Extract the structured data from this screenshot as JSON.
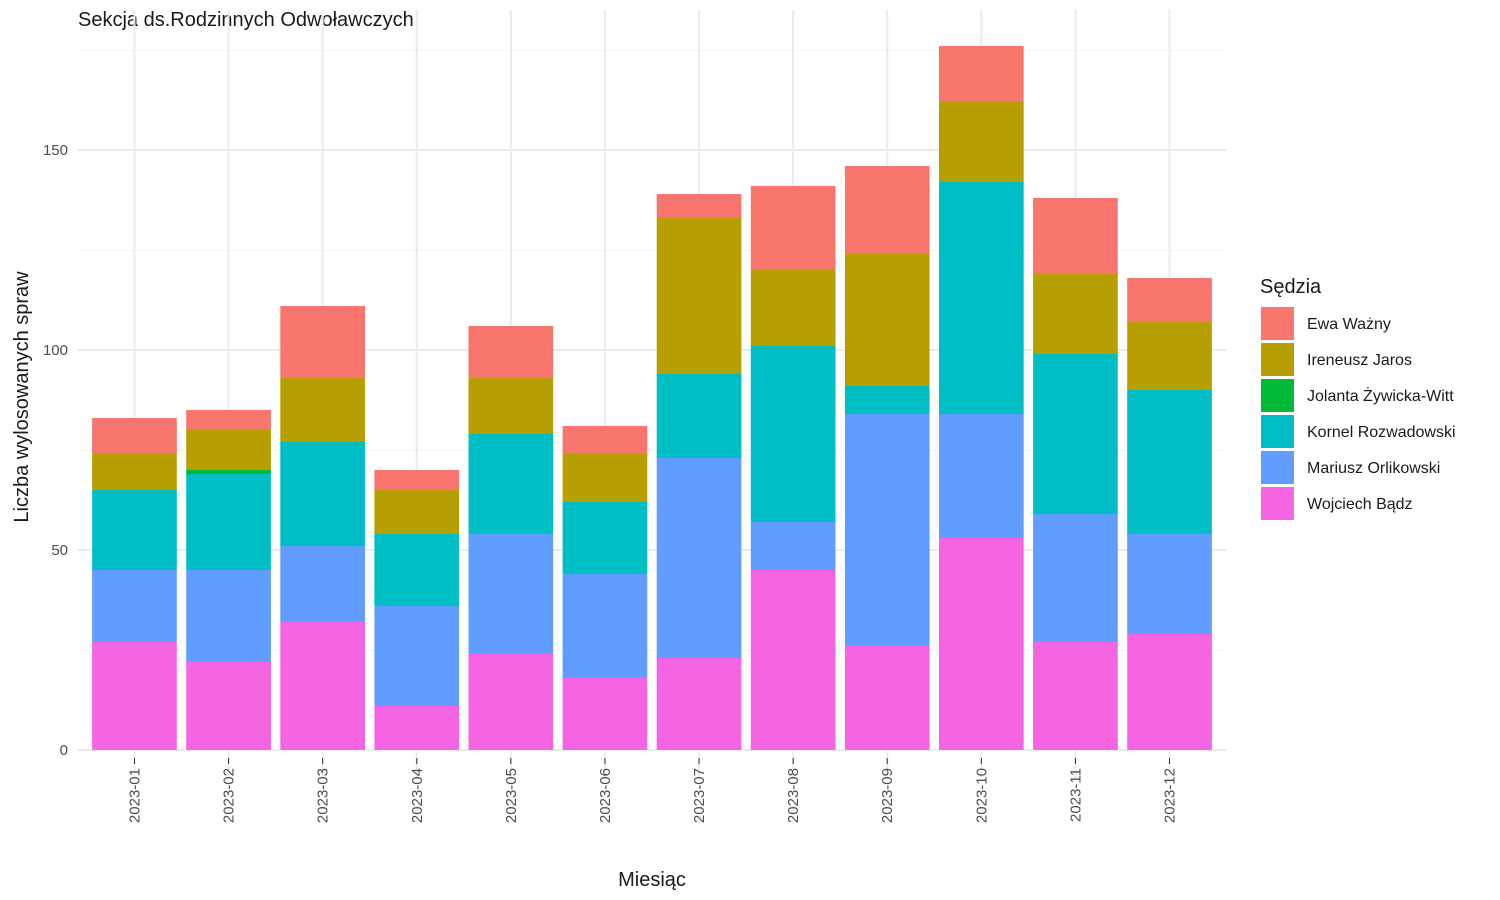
{
  "chart_data": {
    "type": "bar",
    "stacked": true,
    "title": "Sekcja ds.Rodzinnych Odwoławczych",
    "xlabel": "Miesiąc",
    "ylabel": "Liczba wylosowanych spraw",
    "ylim": [
      0,
      181
    ],
    "yticks": [
      0,
      50,
      100,
      150
    ],
    "grid": true,
    "legend": {
      "title": "Sędzia",
      "position": "right"
    },
    "categories": [
      "2023-01",
      "2023-02",
      "2023-03",
      "2023-04",
      "2023-05",
      "2023-06",
      "2023-07",
      "2023-08",
      "2023-09",
      "2023-10",
      "2023-11",
      "2023-12"
    ],
    "series": [
      {
        "name": "Wojciech Bądz",
        "color": "#F564E3",
        "values": [
          27,
          22,
          32,
          11,
          24,
          18,
          23,
          45,
          26,
          53,
          27,
          29
        ]
      },
      {
        "name": "Mariusz Orlikowski",
        "color": "#619CFF",
        "values": [
          18,
          23,
          19,
          25,
          30,
          26,
          50,
          12,
          58,
          31,
          32,
          25
        ]
      },
      {
        "name": "Kornel Rozwadowski",
        "color": "#00BFC4",
        "values": [
          20,
          24,
          26,
          18,
          25,
          18,
          21,
          44,
          7,
          58,
          40,
          36
        ]
      },
      {
        "name": "Jolanta Żywicka-Witt",
        "color": "#00BA38",
        "values": [
          0,
          1,
          0,
          0,
          0,
          0,
          0,
          0,
          0,
          0,
          0,
          0
        ]
      },
      {
        "name": "Ireneusz Jaros",
        "color": "#B79F00",
        "values": [
          9,
          10,
          16,
          11,
          14,
          12,
          39,
          19,
          33,
          20,
          20,
          17
        ]
      },
      {
        "name": "Ewa Ważny",
        "color": "#F8766D",
        "values": [
          9,
          5,
          18,
          5,
          13,
          7,
          6,
          21,
          22,
          14,
          19,
          11
        ]
      }
    ],
    "legend_order": [
      "Ewa Ważny",
      "Ireneusz Jaros",
      "Jolanta Żywicka-Witt",
      "Kornel Rozwadowski",
      "Mariusz Orlikowski",
      "Wojciech Bądz"
    ]
  }
}
